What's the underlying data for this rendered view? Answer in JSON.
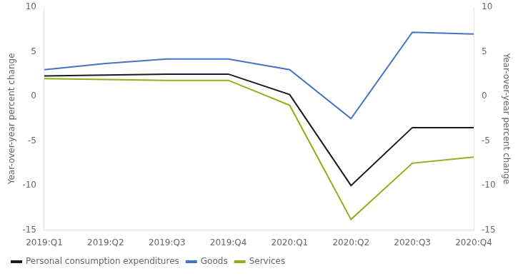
{
  "chart_data": {
    "type": "line",
    "categories": [
      "2019:Q1",
      "2019:Q2",
      "2019:Q3",
      "2019:Q4",
      "2020:Q1",
      "2020:Q2",
      "2020:Q3",
      "2020:Q4"
    ],
    "series": [
      {
        "name": "Personal consumption expenditures",
        "color": "#1a1a1a",
        "values": [
          2.3,
          2.4,
          2.5,
          2.5,
          0.2,
          -10.0,
          -3.5,
          -3.5
        ]
      },
      {
        "name": "Goods",
        "color": "#4472c4",
        "values": [
          3.0,
          3.7,
          4.2,
          4.2,
          3.0,
          -2.5,
          7.2,
          7.0
        ]
      },
      {
        "name": "Services",
        "color": "#8fae1b",
        "values": [
          2.0,
          1.9,
          1.8,
          1.8,
          -1.0,
          -13.8,
          -7.5,
          -6.8
        ]
      }
    ],
    "ylabel": "Year-over-year percent change",
    "y2label": "Year-over-year percent change",
    "ylim": [
      -15,
      10
    ],
    "yticks": [
      -15,
      -10,
      -5,
      0,
      5,
      10
    ],
    "y2lim": [
      -15,
      10
    ],
    "y2ticks": [
      -15,
      -10,
      -5,
      0,
      5,
      10
    ],
    "grid": false,
    "legend": "lower left"
  }
}
